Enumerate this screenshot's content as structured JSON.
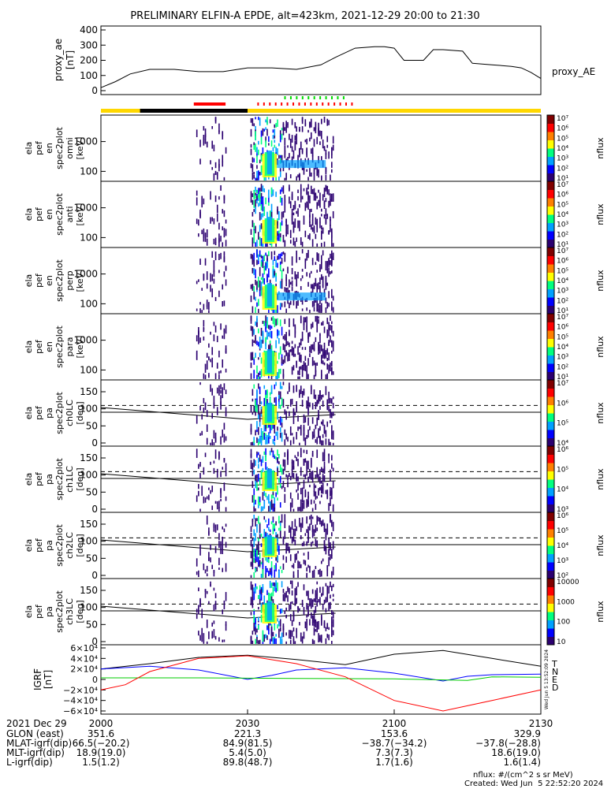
{
  "title": "PRELIMINARY ELFIN-A EPDE, alt=423km, 2021-12-29 20:00 to 21:30",
  "colors": {
    "frame": "#000000",
    "status_yellow": "#ffd700",
    "status_black": "#000000",
    "status_red": "#ff0000",
    "status_green": "#00dd00",
    "grf_t": "#000000",
    "grf_n": "#0000ff",
    "grf_e": "#00cc00",
    "grf_d": "#ff0000"
  },
  "chart_data": [
    {
      "type": "line",
      "panel": "proxy_ae",
      "ylabel_lines": [
        "proxy_ae",
        "[nT]"
      ],
      "legend": "proxy_AE",
      "ylim": [
        0,
        400
      ],
      "yticks": [
        "0",
        "100",
        "200",
        "300",
        "400"
      ],
      "x_minutes": [
        0,
        3,
        6,
        10,
        15,
        20,
        25,
        30,
        35,
        40,
        45,
        48,
        52,
        56,
        58,
        60,
        62,
        64,
        66,
        68,
        70,
        74,
        76,
        78,
        80,
        82,
        84,
        86,
        88,
        90
      ],
      "values": [
        20,
        60,
        110,
        140,
        140,
        125,
        125,
        150,
        150,
        140,
        170,
        220,
        280,
        290,
        290,
        280,
        200,
        200,
        200,
        270,
        270,
        260,
        180,
        175,
        170,
        165,
        160,
        150,
        120,
        80
      ]
    },
    {
      "type": "heatmap",
      "panels": [
        {
          "ylabel_lines": [
            "ela",
            "pef",
            "en",
            "spec2plot",
            "omni",
            "[keV]"
          ],
          "yticks": [
            "1000",
            "100"
          ]
        },
        {
          "ylabel_lines": [
            "ela",
            "pef",
            "en",
            "spec2plot",
            "anti",
            "[keV]"
          ],
          "yticks": [
            "1000",
            "100"
          ]
        },
        {
          "ylabel_lines": [
            "ela",
            "pef",
            "en",
            "spec2plot",
            "perp",
            "[keV]"
          ],
          "yticks": [
            "1000",
            "100"
          ]
        },
        {
          "ylabel_lines": [
            "ela",
            "pef",
            "en",
            "spec2plot",
            "para",
            "[keV]"
          ],
          "yticks": [
            "1000",
            "100"
          ]
        },
        {
          "ylabel_lines": [
            "ela",
            "pef",
            "pa",
            "spec2plot",
            "ch0LC",
            "[deg]"
          ],
          "yticks": [
            "150",
            "100",
            "50",
            "0"
          ]
        },
        {
          "ylabel_lines": [
            "ela",
            "pef",
            "pa",
            "spec2plot",
            "ch1LC",
            "[deg]"
          ],
          "yticks": [
            "150",
            "100",
            "50",
            "0"
          ]
        },
        {
          "ylabel_lines": [
            "ela",
            "pef",
            "pa",
            "spec2plot",
            "ch2LC",
            "[deg]"
          ],
          "yticks": [
            "150",
            "100",
            "50",
            "0"
          ]
        },
        {
          "ylabel_lines": [
            "ela",
            "pef",
            "pa",
            "spec2plot",
            "ch3LC",
            "[deg]"
          ],
          "yticks": [
            "150",
            "100",
            "50",
            "0"
          ]
        }
      ],
      "colorbars": [
        {
          "label": "nflux",
          "ticks": [
            "10¹",
            "10²",
            "10³",
            "10⁴",
            "10⁵",
            "10⁶",
            "10⁷"
          ]
        },
        {
          "label": "nflux",
          "ticks": [
            "10¹",
            "10²",
            "10³",
            "10⁴",
            "10⁵",
            "10⁶",
            "10⁷"
          ]
        },
        {
          "label": "nflux",
          "ticks": [
            "10¹",
            "10²",
            "10³",
            "10⁴",
            "10⁵",
            "10⁶",
            "10⁷"
          ]
        },
        {
          "label": "nflux",
          "ticks": [
            "10¹",
            "10²",
            "10³",
            "10⁴",
            "10⁵",
            "10⁶",
            "10⁷"
          ]
        },
        {
          "label": "nflux",
          "ticks": [
            "10⁴",
            "10⁵",
            "10⁶",
            "10⁷"
          ]
        },
        {
          "label": "nflux",
          "ticks": [
            "10³",
            "10⁴",
            "10⁵",
            "10⁶"
          ]
        },
        {
          "label": "nflux",
          "ticks": [
            "10²",
            "10³",
            "10⁴",
            "10⁵",
            "10⁶"
          ]
        },
        {
          "label": "nflux",
          "ticks": [
            "10",
            "100",
            "1000",
            "10000"
          ]
        }
      ]
    },
    {
      "type": "line",
      "panel": "GRF",
      "ylabel_lines": [
        "IGRF",
        "[nT]"
      ],
      "yticks": [
        "6×10⁴",
        "4×10⁴",
        "2×10⁴",
        "0",
        "−2×10⁴",
        "−4×10⁴",
        "−6×10⁴"
      ],
      "ylim": [
        -60000,
        60000
      ],
      "series": [
        {
          "name": "T",
          "x_minutes": [
            0,
            10,
            20,
            30,
            40,
            50,
            60,
            70,
            80,
            90
          ],
          "values": [
            20000,
            30000,
            42000,
            46000,
            38000,
            28000,
            48000,
            55000,
            40000,
            25000
          ]
        },
        {
          "name": "N",
          "x_minutes": [
            0,
            10,
            20,
            30,
            35,
            40,
            50,
            60,
            70,
            75,
            80,
            90
          ],
          "values": [
            20000,
            25000,
            18000,
            200,
            8000,
            18000,
            22000,
            12000,
            -3000,
            6000,
            9000,
            10000
          ]
        },
        {
          "name": "E",
          "x_minutes": [
            0,
            20,
            40,
            60,
            75,
            80,
            90
          ],
          "values": [
            3000,
            3000,
            2000,
            1000,
            -2000,
            5000,
            4000
          ]
        },
        {
          "name": "D",
          "x_minutes": [
            0,
            5,
            10,
            20,
            30,
            40,
            50,
            60,
            70,
            80,
            90
          ],
          "values": [
            -20000,
            -10000,
            15000,
            40000,
            45000,
            30000,
            5000,
            -40000,
            -60000,
            -40000,
            -20000
          ]
        }
      ],
      "side_label": "Wed Jun  5 13:52:09 2024"
    }
  ],
  "xaxis": {
    "row_label": "2021 Dec 29",
    "ticks": [
      "2000",
      "2030",
      "2100",
      "2130"
    ],
    "rows": [
      {
        "label": "GLON (east)",
        "values": [
          "351.6",
          "221.3",
          "153.6",
          "329.9"
        ]
      },
      {
        "label": "MLAT-igrf(dip)",
        "values": [
          "66.5(−20.2)",
          "84.9(81.5)",
          "−38.7(−34.2)",
          "−37.8(−28.8)"
        ]
      },
      {
        "label": "MLT-igrf(dip)",
        "values": [
          "18.9(19.0)",
          "5.4(5.0)",
          "7.3(7.3)",
          "18.6(19.0)"
        ]
      },
      {
        "label": "L-igrf(dip)",
        "values": [
          "1.5(1.2)",
          "89.8(48.7)",
          "1.7(1.6)",
          "1.6(1.4)"
        ]
      }
    ]
  },
  "footer": {
    "nflux_units": "nflux: #/(cm^2 s sr MeV)",
    "created": "Created: Wed Jun  5 22:52:20 2024"
  }
}
